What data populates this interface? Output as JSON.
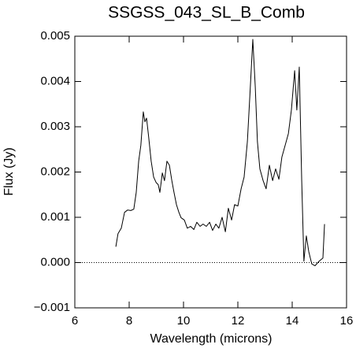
{
  "chart_data": {
    "type": "line",
    "title": "SSGSS_043_SL_B_Comb",
    "x_label": "Wavelength (microns)",
    "y_label": "Flux (Jy)",
    "xlim": [
      6,
      16
    ],
    "ylim": [
      -0.001,
      0.005
    ],
    "xticks": [
      6,
      8,
      10,
      12,
      14,
      16
    ],
    "yticks": [
      {
        "value": -0.001,
        "label": "−0.001"
      },
      {
        "value": 0,
        "label": "0.000"
      },
      {
        "value": 0.001,
        "label": "0.001"
      },
      {
        "value": 0.002,
        "label": "0.002"
      },
      {
        "value": 0.003,
        "label": "0.003"
      },
      {
        "value": 0.004,
        "label": "0.004"
      },
      {
        "value": 0.005,
        "label": "0.005"
      }
    ],
    "zero_line": true,
    "color": "#000000",
    "x": [
      7.51,
      7.59,
      7.71,
      7.83,
      7.94,
      8.06,
      8.17,
      8.26,
      8.35,
      8.43,
      8.52,
      8.58,
      8.64,
      8.72,
      8.81,
      8.9,
      8.99,
      9.07,
      9.13,
      9.22,
      9.3,
      9.39,
      9.48,
      9.57,
      9.65,
      9.74,
      9.83,
      9.91,
      10.03,
      10.14,
      10.26,
      10.38,
      10.49,
      10.61,
      10.72,
      10.84,
      10.96,
      11.07,
      11.19,
      11.3,
      11.42,
      11.54,
      11.65,
      11.77,
      11.88,
      12.0,
      12.12,
      12.23,
      12.35,
      12.46,
      12.55,
      12.64,
      12.72,
      12.81,
      12.93,
      13.04,
      13.16,
      13.28,
      13.39,
      13.51,
      13.62,
      13.74,
      13.86,
      13.97,
      14.09,
      14.17,
      14.26,
      14.35,
      14.43,
      14.52,
      14.61,
      14.72,
      14.84,
      14.99,
      15.13,
      15.19
    ],
    "values": [
      0.00035,
      0.00064,
      0.00076,
      0.00111,
      0.00116,
      0.00115,
      0.00118,
      0.00155,
      0.00224,
      0.00259,
      0.00333,
      0.00311,
      0.00319,
      0.00276,
      0.00224,
      0.00189,
      0.00177,
      0.00172,
      0.00155,
      0.00198,
      0.00181,
      0.00224,
      0.00215,
      0.00181,
      0.00155,
      0.00128,
      0.00111,
      0.00099,
      0.00094,
      0.00076,
      0.0008,
      0.00073,
      0.00089,
      0.0008,
      0.00085,
      0.0008,
      0.00089,
      0.00071,
      0.00085,
      0.00076,
      0.001,
      0.00068,
      0.0012,
      0.00094,
      0.00128,
      0.00125,
      0.00163,
      0.00189,
      0.00267,
      0.00389,
      0.00493,
      0.00389,
      0.00267,
      0.00207,
      0.00181,
      0.00163,
      0.00215,
      0.00181,
      0.00207,
      0.00184,
      0.00233,
      0.00259,
      0.00285,
      0.00337,
      0.00424,
      0.00337,
      0.00432,
      0.00181,
      3e-05,
      0.00059,
      0.00024,
      -3e-05,
      -7e-05,
      3e-05,
      0.0001,
      0.00085
    ]
  }
}
